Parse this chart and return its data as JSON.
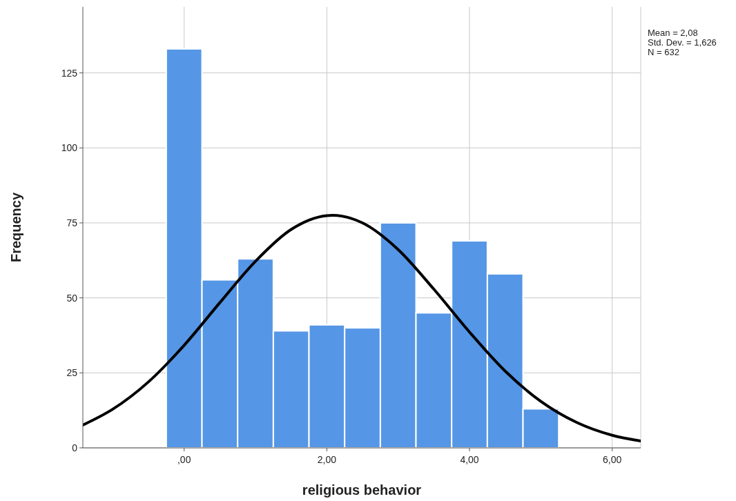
{
  "chart_data": {
    "type": "histogram",
    "xlabel": "religious behavior",
    "ylabel": "Frequency",
    "annotations": [
      "Mean = 2,08",
      "Std. Dev. = 1,626",
      "N = 632"
    ],
    "xlim": [
      -1.42,
      6.4
    ],
    "xticks": [
      {
        "value": 0,
        "label": ",00"
      },
      {
        "value": 2,
        "label": "2,00"
      },
      {
        "value": 4,
        "label": "4,00"
      },
      {
        "value": 6,
        "label": "6,00"
      }
    ],
    "ylim": [
      0,
      147
    ],
    "yticks": [
      0,
      25,
      50,
      75,
      100,
      125
    ],
    "grid": true,
    "series": [
      {
        "color": "#5596e6",
        "bins": [
          -0.25,
          0.25,
          0.75,
          1.25,
          1.75,
          2.25,
          2.75,
          3.25,
          3.75,
          4.25,
          4.75,
          5.25
        ],
        "values": [
          133,
          56,
          63,
          39,
          41,
          40,
          75,
          45,
          69,
          58,
          13
        ]
      },
      {
        "type": "line",
        "color": "#000000",
        "x": [
          -1.42,
          -1,
          -0.5,
          0,
          0.5,
          1,
          1.5,
          2,
          2.08,
          2.5,
          3,
          3.5,
          4,
          4.5,
          5,
          5.5,
          6,
          6.4
        ],
        "values": [
          7.6,
          12.9,
          22.0,
          34.2,
          48.4,
          62.2,
          72.8,
          77.4,
          77.5,
          75.0,
          66.1,
          52.9,
          38.6,
          25.6,
          15.5,
          8.5,
          4.2,
          2.3
        ]
      }
    ]
  }
}
